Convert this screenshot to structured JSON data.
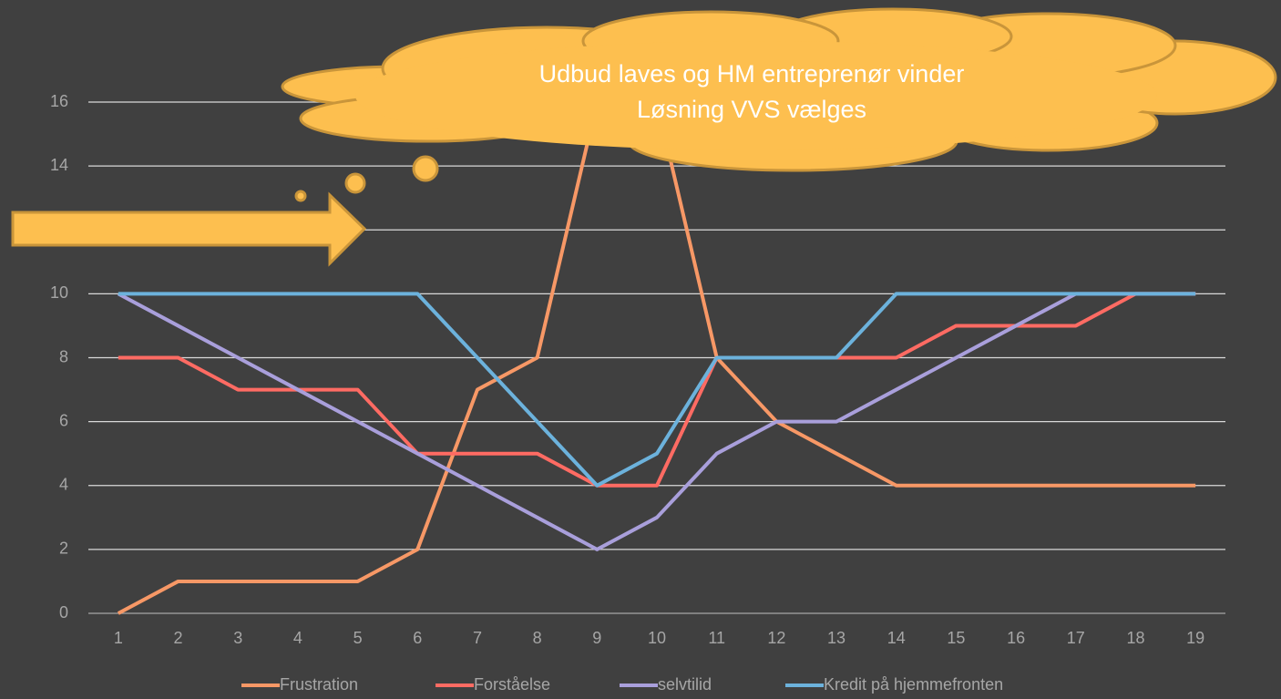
{
  "chart_data": {
    "type": "line",
    "annotation": [
      "Udbud laves og HM entreprenør vinder",
      "Løsning VVS vælges"
    ],
    "x": [
      1,
      2,
      3,
      4,
      5,
      6,
      7,
      8,
      9,
      10,
      11,
      12,
      13,
      14,
      15,
      16,
      17,
      18,
      19
    ],
    "xlim": [
      0.5,
      19.5
    ],
    "xticks": [
      1,
      2,
      3,
      4,
      5,
      6,
      7,
      8,
      9,
      10,
      11,
      12,
      13,
      14,
      15,
      16,
      17,
      18,
      19
    ],
    "ylim": [
      0,
      16
    ],
    "yticks": [
      0,
      2,
      4,
      6,
      8,
      10,
      12,
      14,
      16
    ],
    "grid": true,
    "legend": "bottom",
    "series": [
      {
        "name": "Frustration",
        "color": "#f79866",
        "values": [
          0,
          1,
          1,
          1,
          1,
          2,
          7,
          8,
          16,
          16,
          8,
          6,
          5,
          4,
          4,
          4,
          4,
          4,
          4
        ]
      },
      {
        "name": "Forståelse",
        "color": "#ff6b63",
        "values": [
          8,
          8,
          7,
          7,
          7,
          5,
          5,
          5,
          4,
          4,
          8,
          8,
          8,
          8,
          9,
          9,
          9,
          10,
          10
        ]
      },
      {
        "name": "selvtilid",
        "color": "#a99fdb",
        "values": [
          10,
          9,
          8,
          7,
          6,
          5,
          4,
          3,
          2,
          3,
          5,
          6,
          6,
          7,
          8,
          9,
          10,
          10,
          10
        ]
      },
      {
        "name": "Kredit på hjemmefronten",
        "color": "#6cb2dc",
        "values": [
          10,
          10,
          10,
          10,
          10,
          10,
          8,
          6,
          4,
          5,
          8,
          8,
          8,
          10,
          10,
          10,
          10,
          10,
          10
        ]
      }
    ]
  }
}
